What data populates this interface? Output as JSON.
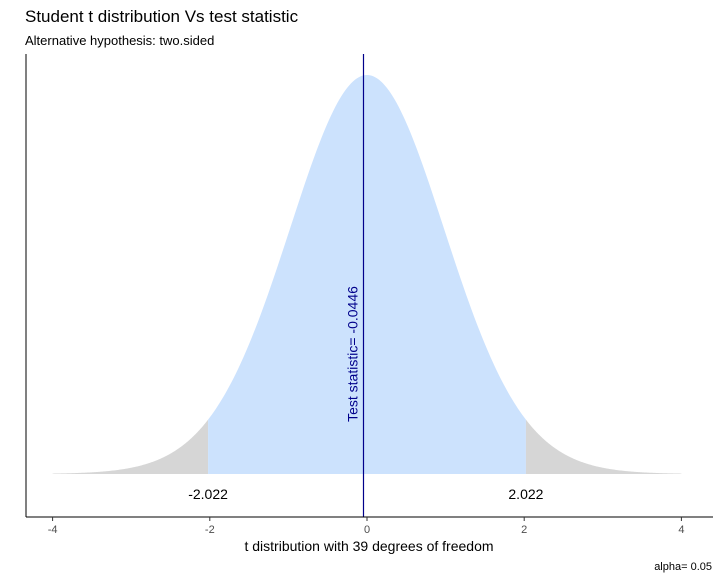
{
  "chart_data": {
    "type": "area",
    "title": "Student t distribution Vs test statistic",
    "subtitle": "Alternative hypothesis: two.sided",
    "xlabel": "t distribution with 39 degrees of freedom",
    "ylabel": "",
    "caption": "alpha= 0.05",
    "xlim": [
      -4,
      4
    ],
    "x_ticks": [
      -4,
      -2,
      0,
      2,
      4
    ],
    "degrees_of_freedom": 39,
    "critical_values": [
      -2.022,
      2.022
    ],
    "critical_labels": [
      "-2.022",
      "2.022"
    ],
    "test_statistic": -0.0446,
    "test_statistic_label": "Test statistic= -0.0446",
    "acceptance_color": "#cce2fd",
    "rejection_color": "#d6d6d6",
    "statistic_line_color": "#00008b",
    "grid": false
  }
}
